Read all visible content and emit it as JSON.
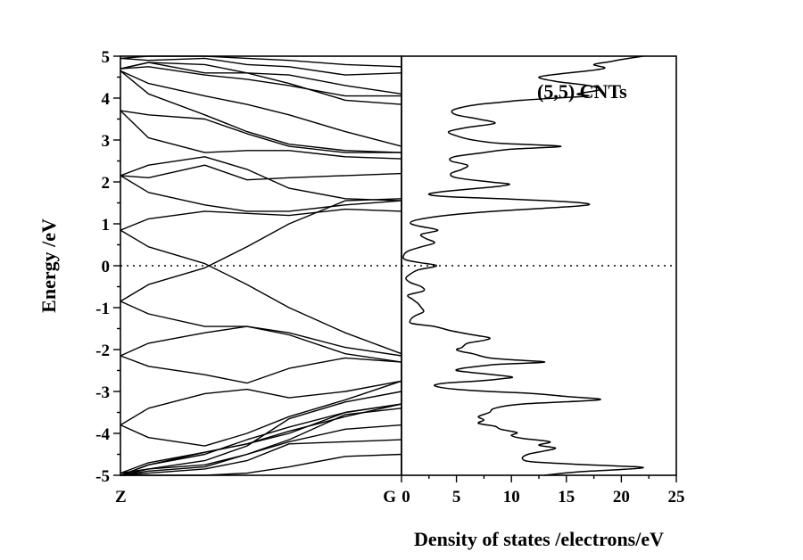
{
  "chart_data": [
    {
      "type": "line",
      "panel": "band-structure",
      "xlabel": "",
      "ylabel": "Energy /eV",
      "ylim": [
        -5,
        5
      ],
      "yticks": [
        "-5",
        "-4",
        "-3",
        "-2",
        "-1",
        "0",
        "1",
        "2",
        "3",
        "4",
        "5"
      ],
      "kpoints": [
        "Z",
        "G"
      ],
      "fermi_level": 0,
      "x": [
        0,
        0.1,
        0.3,
        0.45,
        0.6,
        0.8,
        1.0
      ],
      "series": [
        {
          "values": [
            0.85,
            0.45,
            0.05,
            -0.45,
            -1.0,
            -1.6,
            -2.1
          ]
        },
        {
          "values": [
            -0.85,
            -0.45,
            -0.05,
            0.45,
            1.0,
            1.55,
            1.6
          ]
        },
        {
          "values": [
            0.85,
            1.12,
            1.3,
            1.25,
            1.2,
            1.35,
            1.3
          ]
        },
        {
          "values": [
            -0.85,
            -1.15,
            -1.45,
            -1.45,
            -1.6,
            -1.95,
            -2.15
          ]
        },
        {
          "values": [
            2.15,
            1.75,
            1.45,
            1.3,
            1.3,
            1.45,
            1.55
          ]
        },
        {
          "values": [
            2.15,
            2.4,
            2.6,
            2.3,
            1.85,
            1.6,
            1.55
          ]
        },
        {
          "values": [
            -2.15,
            -1.85,
            -1.6,
            -1.45,
            -1.65,
            -2.1,
            -2.3
          ]
        },
        {
          "values": [
            -2.15,
            -2.4,
            -2.6,
            -2.8,
            -2.45,
            -2.2,
            -2.3
          ]
        },
        {
          "values": [
            2.15,
            2.1,
            2.4,
            2.05,
            2.1,
            2.15,
            2.2
          ]
        },
        {
          "values": [
            3.7,
            3.05,
            2.7,
            2.75,
            2.75,
            2.6,
            2.55
          ]
        },
        {
          "values": [
            3.7,
            3.6,
            3.5,
            3.15,
            2.85,
            2.7,
            2.7
          ]
        },
        {
          "values": [
            -3.8,
            -3.4,
            -3.05,
            -2.95,
            -3.15,
            -3.0,
            -2.75
          ]
        },
        {
          "values": [
            -3.8,
            -4.1,
            -4.3,
            -4.0,
            -3.6,
            -3.2,
            -2.75
          ]
        },
        {
          "values": [
            4.65,
            4.1,
            3.6,
            3.2,
            2.9,
            2.75,
            2.7
          ]
        },
        {
          "values": [
            4.65,
            4.35,
            4.05,
            3.85,
            3.6,
            3.2,
            2.85
          ]
        },
        {
          "values": [
            4.7,
            4.85,
            4.6,
            4.6,
            4.35,
            3.95,
            3.85
          ]
        },
        {
          "values": [
            4.7,
            4.75,
            4.55,
            4.45,
            4.3,
            4.05,
            4.05
          ]
        },
        {
          "values": [
            4.7,
            4.85,
            4.8,
            4.6,
            4.55,
            4.3,
            4.1
          ]
        },
        {
          "values": [
            4.95,
            4.9,
            4.95,
            4.8,
            4.75,
            4.55,
            4.6
          ]
        },
        {
          "values": [
            4.95,
            5.0,
            5.0,
            4.95,
            4.9,
            4.8,
            4.75
          ]
        },
        {
          "values": [
            -5.0,
            -4.75,
            -4.5,
            -4.15,
            -3.85,
            -3.5,
            -3.3
          ]
        },
        {
          "values": [
            -5.0,
            -4.75,
            -4.45,
            -4.25,
            -3.95,
            -3.6,
            -3.3
          ]
        },
        {
          "values": [
            -5.0,
            -4.85,
            -4.65,
            -4.3,
            -3.65,
            -3.25,
            -3.0
          ]
        },
        {
          "values": [
            -4.95,
            -4.7,
            -4.45,
            -4.25,
            -4.0,
            -3.5,
            -3.3
          ]
        },
        {
          "values": [
            -5.0,
            -4.95,
            -4.85,
            -4.65,
            -4.25,
            -4.2,
            -4.15
          ]
        },
        {
          "values": [
            -5.0,
            -5.0,
            -5.0,
            -4.95,
            -4.8,
            -4.55,
            -4.5
          ]
        },
        {
          "values": [
            -5.0,
            -4.9,
            -4.8,
            -4.5,
            -4.15,
            -3.55,
            -3.4
          ]
        },
        {
          "values": [
            -4.95,
            -4.85,
            -4.75,
            -4.5,
            -4.2,
            -3.9,
            -3.8
          ]
        }
      ]
    },
    {
      "type": "line",
      "panel": "density-of-states",
      "xlabel": "Density of states /electrons/eV",
      "ylabel": "",
      "xlim": [
        0,
        25
      ],
      "ylim": [
        -5,
        5
      ],
      "xticks": [
        "0",
        "5",
        "10",
        "15",
        "20",
        "25"
      ],
      "annotation": "(5,5) CNTs",
      "fermi_level": 0,
      "series": [
        {
          "energy": [
            -5.0,
            -4.92,
            -4.82,
            -4.75,
            -4.68,
            -4.6,
            -4.5,
            -4.42,
            -4.35,
            -4.28,
            -4.2,
            -4.12,
            -4.05,
            -3.98,
            -3.9,
            -3.83,
            -3.76,
            -3.68,
            -3.6,
            -3.5,
            -3.4,
            -3.3,
            -3.2,
            -3.12,
            -3.05,
            -3.0,
            -2.95,
            -2.9,
            -2.85,
            -2.8,
            -2.75,
            -2.7,
            -2.65,
            -2.55,
            -2.5,
            -2.45,
            -2.4,
            -2.35,
            -2.3,
            -2.25,
            -2.2,
            -2.1,
            -2.05,
            -2.0,
            -1.95,
            -1.85,
            -1.78,
            -1.72,
            -1.65,
            -1.55,
            -1.45,
            -1.38,
            -1.3,
            -1.2,
            -1.1,
            -1.0,
            -0.9,
            -0.8,
            -0.7,
            -0.6,
            -0.5,
            -0.4,
            -0.3,
            -0.2,
            -0.1,
            0.0,
            0.08,
            0.15,
            0.25,
            0.35,
            0.45,
            0.55,
            0.65,
            0.75,
            0.85,
            0.95,
            1.02,
            1.1,
            1.2,
            1.3,
            1.38,
            1.45,
            1.52,
            1.6,
            1.65,
            1.7,
            1.75,
            1.8,
            1.85,
            1.9,
            1.95,
            2.0,
            2.1,
            2.2,
            2.3,
            2.4,
            2.5,
            2.6,
            2.7,
            2.78,
            2.85,
            2.92,
            3.0,
            3.1,
            3.2,
            3.3,
            3.4,
            3.5,
            3.6,
            3.7,
            3.78,
            3.85,
            3.9,
            3.95,
            4.0,
            4.05,
            4.1,
            4.2,
            4.3,
            4.4,
            4.5,
            4.58,
            4.65,
            4.72,
            4.8,
            4.87,
            4.92,
            5.0
          ],
          "dos": [
            13.0,
            16.0,
            22.0,
            17.0,
            12.0,
            11.0,
            11.5,
            13.0,
            14.0,
            12.5,
            13.5,
            11.0,
            10.0,
            10.5,
            9.0,
            8.5,
            7.0,
            7.5,
            7.0,
            8.0,
            8.5,
            11.0,
            18.0,
            15.0,
            12.0,
            8.0,
            5.0,
            3.5,
            3.0,
            4.0,
            7.0,
            9.0,
            10.0,
            6.5,
            5.0,
            5.5,
            7.0,
            9.0,
            13.0,
            10.5,
            8.0,
            6.5,
            5.5,
            5.0,
            5.5,
            6.0,
            7.5,
            8.0,
            6.5,
            4.5,
            3.0,
            1.0,
            0.8,
            1.2,
            2.0,
            1.8,
            1.5,
            1.0,
            0.6,
            2.0,
            1.8,
            0.8,
            0.4,
            0.8,
            1.5,
            3.2,
            1.5,
            0.3,
            0.2,
            0.6,
            1.8,
            3.0,
            2.2,
            1.8,
            3.3,
            1.5,
            0.8,
            1.5,
            4.0,
            8.5,
            13.5,
            17.0,
            15.5,
            9.0,
            4.0,
            2.5,
            3.2,
            5.0,
            7.0,
            9.0,
            9.8,
            8.0,
            5.0,
            4.5,
            5.5,
            6.0,
            4.5,
            4.8,
            7.5,
            10.0,
            14.5,
            9.0,
            6.5,
            5.0,
            4.3,
            6.0,
            8.5,
            7.0,
            5.0,
            4.6,
            5.5,
            7.0,
            9.0,
            11.0,
            14.0,
            17.0,
            16.0,
            18.0,
            17.0,
            14.0,
            12.5,
            14.5,
            17.0,
            18.5,
            17.5,
            19.0,
            20.0,
            22.0
          ]
        }
      ]
    }
  ]
}
